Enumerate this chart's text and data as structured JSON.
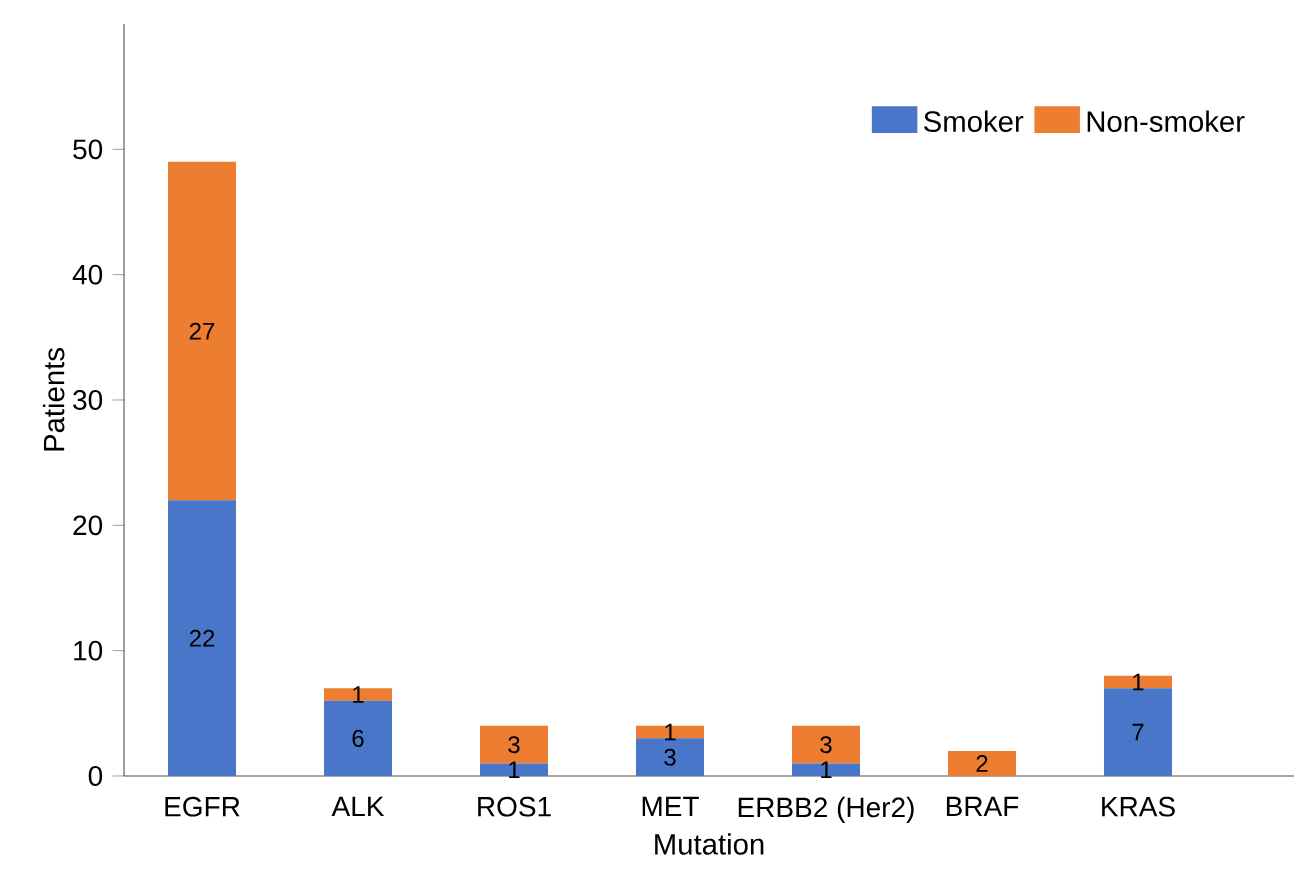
{
  "chart_data": {
    "type": "bar",
    "stacked": true,
    "xlabel": "Mutation",
    "ylabel": "Patients",
    "categories": [
      "EGFR",
      "ALK",
      "ROS1",
      "MET",
      "ERBB2 (Her2)",
      "BRAF",
      "KRAS"
    ],
    "series": [
      {
        "name": "Smoker",
        "color": "#4a76c9",
        "values": [
          22,
          6,
          1,
          3,
          1,
          0,
          7
        ],
        "value_labels": [
          "22",
          "6",
          "1",
          "3",
          "1",
          null,
          "7"
        ]
      },
      {
        "name": "Non-smoker",
        "color": "#ed7d31",
        "values": [
          27,
          1,
          3,
          1,
          3,
          2,
          1
        ],
        "value_labels": [
          "27",
          "1",
          "3",
          "1",
          "3",
          "2",
          "1"
        ]
      }
    ],
    "ylim": [
      0,
      60
    ],
    "yticks": [
      0,
      10,
      20,
      30,
      40,
      50
    ],
    "grid": false,
    "legend": "top right"
  }
}
